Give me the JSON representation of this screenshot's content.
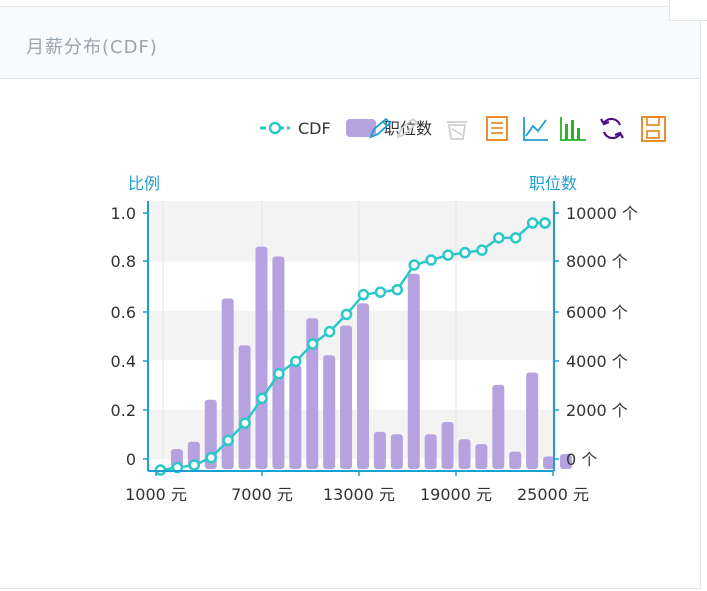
{
  "panel": {
    "title": "月薪分布(CDF)"
  },
  "toolbar": {
    "icons": [
      "pencil-icon",
      "pencil-alt-icon",
      "eraser-icon",
      "data-view-icon",
      "line-chart-icon",
      "bar-chart-icon",
      "refresh-icon",
      "save-icon"
    ]
  },
  "colors": {
    "cdf": "#2ec7c9",
    "bar": "#b6a2de",
    "axis": "#1e9fd3",
    "grid_band": "#f3f3f3"
  },
  "chart_data": {
    "type": "bar",
    "xlabel": "",
    "left_axis_name": "比例",
    "right_axis_name": "职位数",
    "x_ticks": [
      "1000 元",
      "7000 元",
      "13000 元",
      "19000 元",
      "25000 元"
    ],
    "x_tick_values": [
      1000,
      7000,
      13000,
      19000,
      25000
    ],
    "xlim": [
      1000,
      25000
    ],
    "y_left_ticks": [
      "0",
      "0.2",
      "0.4",
      "0.6",
      "0.8",
      "1.0"
    ],
    "y_left_lim": [
      0,
      1.0
    ],
    "y_right_ticks": [
      "0 个",
      "2000 个",
      "4000 个",
      "6000 个",
      "8000 个",
      "10000 个"
    ],
    "y_right_lim": [
      0,
      10000
    ],
    "legend": [
      {
        "name": "CDF",
        "kind": "line"
      },
      {
        "name": "职位数",
        "kind": "bar"
      }
    ],
    "series": [
      {
        "name": "职位数",
        "type": "bar",
        "axis": "right",
        "x": [
          2000,
          3000,
          4000,
          5000,
          6000,
          7000,
          8000,
          9000,
          10000,
          11000,
          12000,
          13000,
          14000,
          15000,
          16000,
          17000,
          18000,
          19000,
          20000,
          21000,
          22000,
          23000,
          24000,
          25000
        ],
        "values": [
          400,
          700,
          2400,
          6500,
          4600,
          8600,
          8200,
          3800,
          5700,
          4200,
          5400,
          6300,
          1100,
          1000,
          7500,
          1000,
          1500,
          800,
          600,
          3000,
          300,
          3500,
          100,
          200
        ]
      },
      {
        "name": "CDF",
        "type": "line",
        "axis": "left",
        "x": [
          1500,
          2500,
          3500,
          4500,
          5500,
          6500,
          7500,
          8500,
          9500,
          10500,
          11500,
          12500,
          13500,
          14500,
          15500,
          16500,
          17500,
          18500,
          19500,
          20500,
          21500,
          22500,
          23500,
          24500,
          25000
        ],
        "values": [
          0.0,
          0.01,
          0.02,
          0.05,
          0.12,
          0.19,
          0.29,
          0.39,
          0.44,
          0.51,
          0.56,
          0.63,
          0.71,
          0.72,
          0.73,
          0.83,
          0.85,
          0.87,
          0.88,
          0.89,
          0.94,
          0.94,
          1.0,
          1.0,
          1.0
        ]
      }
    ]
  }
}
